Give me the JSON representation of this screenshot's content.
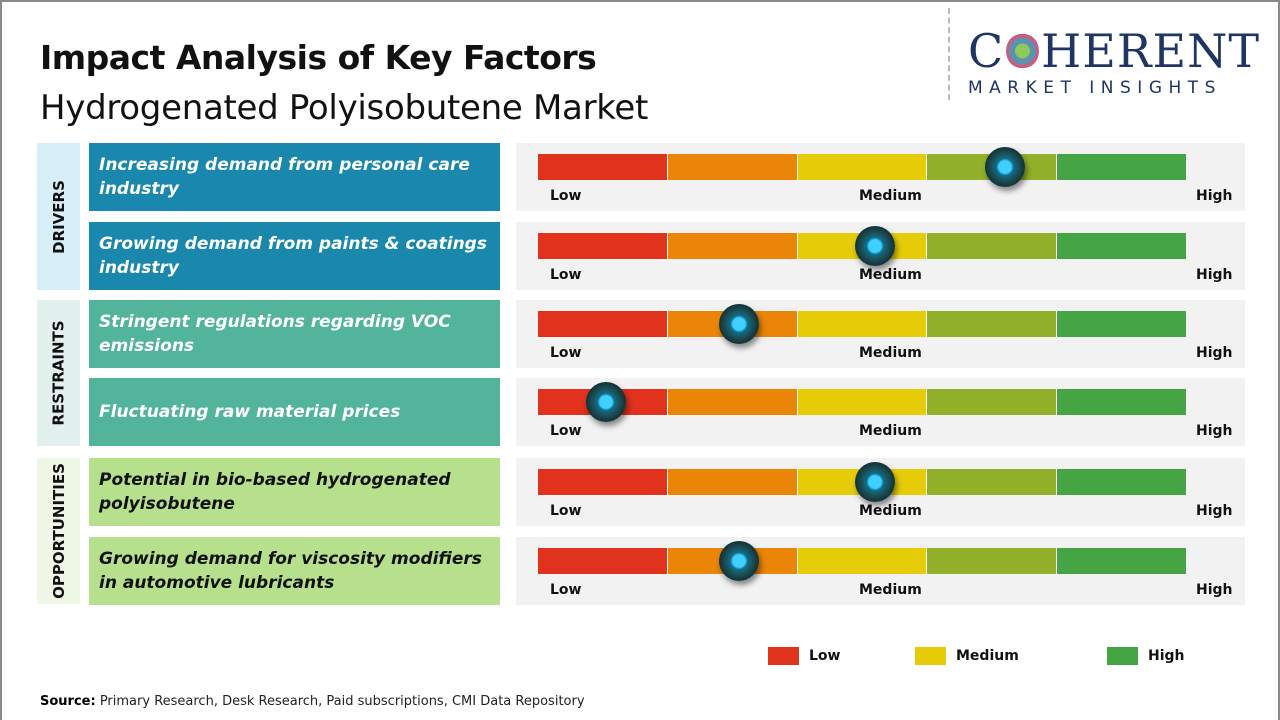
{
  "header": {
    "title": "Impact Analysis of Key Factors",
    "subtitle": "Hydrogenated Polyisobutene Market"
  },
  "logo": {
    "main_left": "C",
    "main_right": "HERENT",
    "sub": "MARKET INSIGHTS"
  },
  "scale": {
    "low": "Low",
    "medium": "Medium",
    "high": "High",
    "segment_colors": [
      "#e0321c",
      "#ea8508",
      "#e6cc08",
      "#92b02a",
      "#45a545"
    ]
  },
  "categories": [
    {
      "label": "DRIVERS",
      "color": "#1a88ad",
      "bg": "#d8eef8",
      "text_color": "#ffffff"
    },
    {
      "label": "RESTRAINTS",
      "color": "#52b49a",
      "bg": "#e2f0ee",
      "text_color": "#ffffff"
    },
    {
      "label": "OPPORTUNITIES",
      "color": "#b6e08c",
      "bg": "#eef6e6",
      "text_color": "#111111"
    }
  ],
  "factors": [
    {
      "category": 0,
      "text": "Increasing demand from personal care industry",
      "impact_level": 0.72
    },
    {
      "category": 0,
      "text": "Growing demand from paints & coatings industry",
      "impact_level": 0.52
    },
    {
      "category": 1,
      "text": "Stringent regulations regarding VOC emissions",
      "impact_level": 0.31
    },
    {
      "category": 1,
      "text": "Fluctuating raw material prices",
      "impact_level": 0.105
    },
    {
      "category": 2,
      "text": "Potential in bio-based hydrogenated polyisobutene",
      "impact_level": 0.52
    },
    {
      "category": 2,
      "text": "Growing demand for viscosity modifiers in automotive lubricants",
      "impact_level": 0.31
    }
  ],
  "legend": [
    {
      "label": "Low",
      "color": "#e0321c"
    },
    {
      "label": "Medium",
      "color": "#e6cc08"
    },
    {
      "label": "High",
      "color": "#45a545"
    }
  ],
  "footer": {
    "source_label": "Source:",
    "source_text": " Primary Research, Desk Research, Paid subscriptions, CMI Data Repository"
  }
}
